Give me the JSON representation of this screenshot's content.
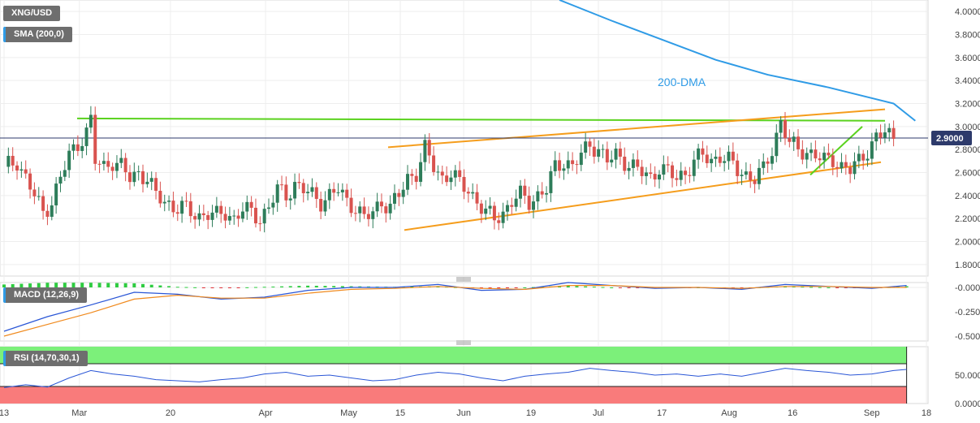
{
  "main_panel": {
    "symbol_label": "XNG/USD",
    "indicator_label": "SMA (200,0)",
    "annotation": "200-DMA",
    "price_tag": "2.9000",
    "y_ticks": [
      "4.0000",
      "3.8000",
      "3.6000",
      "3.4000",
      "3.2000",
      "3.0000",
      "2.8000",
      "2.6000",
      "2.4000",
      "2.2000",
      "2.0000",
      "1.8000"
    ]
  },
  "macd_panel": {
    "label": "MACD (12,26,9)",
    "y_ticks": [
      "-0.0000",
      "-0.2500",
      "-0.5000"
    ]
  },
  "rsi_panel": {
    "label": "RSI (14,70,30,1)",
    "y_ticks": [
      "50.0000",
      "0.0000"
    ]
  },
  "x_ticks": [
    "13",
    "Mar",
    "20",
    "Apr",
    "May",
    "15",
    "Jun",
    "19",
    "Jul",
    "17",
    "Aug",
    "16",
    "Sep",
    "18"
  ],
  "colors": {
    "up": "#2e7d5a",
    "down": "#d9534f",
    "sma": "#2f9be6",
    "green_line": "#5ad21e",
    "orange_line": "#f59d1c",
    "macd": "#2a56d6",
    "signal": "#f08a1e",
    "rsi": "#2a56d6",
    "overbought": "#7cf07a",
    "oversold": "#f97b7b"
  },
  "chart_data": [
    {
      "type": "candlestick",
      "title": "XNG/USD",
      "ylim": [
        1.7,
        4.1
      ],
      "close_points": [
        [
          0,
          2.65
        ],
        [
          3,
          2.7
        ],
        [
          5,
          2.55
        ],
        [
          7,
          2.4
        ],
        [
          9,
          2.25
        ],
        [
          11,
          2.35
        ],
        [
          13,
          2.55
        ],
        [
          15,
          2.75
        ],
        [
          17,
          2.85
        ],
        [
          19,
          2.95
        ],
        [
          20,
          3.05
        ],
        [
          21,
          2.7
        ],
        [
          23,
          2.65
        ],
        [
          25,
          2.7
        ],
        [
          27,
          2.65
        ],
        [
          29,
          2.55
        ],
        [
          31,
          2.6
        ],
        [
          33,
          2.55
        ],
        [
          35,
          2.4
        ],
        [
          37,
          2.35
        ],
        [
          39,
          2.3
        ],
        [
          41,
          2.3
        ],
        [
          43,
          2.25
        ],
        [
          45,
          2.22
        ],
        [
          47,
          2.25
        ],
        [
          49,
          2.22
        ],
        [
          51,
          2.25
        ],
        [
          53,
          2.2
        ],
        [
          55,
          2.28
        ],
        [
          57,
          2.25
        ],
        [
          59,
          2.2
        ],
        [
          61,
          2.3
        ],
        [
          63,
          2.45
        ],
        [
          65,
          2.4
        ],
        [
          67,
          2.5
        ],
        [
          69,
          2.45
        ],
        [
          71,
          2.4
        ],
        [
          73,
          2.35
        ],
        [
          75,
          2.4
        ],
        [
          77,
          2.45
        ],
        [
          79,
          2.35
        ],
        [
          81,
          2.3
        ],
        [
          83,
          2.2
        ],
        [
          85,
          2.25
        ],
        [
          87,
          2.35
        ],
        [
          89,
          2.3
        ],
        [
          91,
          2.4
        ],
        [
          93,
          2.55
        ],
        [
          95,
          2.6
        ],
        [
          97,
          2.8
        ],
        [
          99,
          2.65
        ],
        [
          101,
          2.55
        ],
        [
          103,
          2.6
        ],
        [
          105,
          2.5
        ],
        [
          107,
          2.45
        ],
        [
          109,
          2.35
        ],
        [
          111,
          2.25
        ],
        [
          113,
          2.2
        ],
        [
          115,
          2.25
        ],
        [
          117,
          2.35
        ],
        [
          119,
          2.4
        ],
        [
          121,
          2.35
        ],
        [
          123,
          2.4
        ],
        [
          125,
          2.45
        ],
        [
          127,
          2.65
        ],
        [
          129,
          2.7
        ],
        [
          131,
          2.65
        ],
        [
          133,
          2.75
        ],
        [
          135,
          2.85
        ],
        [
          137,
          2.8
        ],
        [
          139,
          2.7
        ],
        [
          141,
          2.75
        ],
        [
          143,
          2.7
        ],
        [
          145,
          2.65
        ],
        [
          147,
          2.6
        ],
        [
          149,
          2.55
        ],
        [
          151,
          2.65
        ],
        [
          153,
          2.6
        ],
        [
          155,
          2.55
        ],
        [
          157,
          2.6
        ],
        [
          159,
          2.7
        ],
        [
          161,
          2.75
        ],
        [
          163,
          2.7
        ],
        [
          165,
          2.75
        ],
        [
          167,
          2.7
        ],
        [
          169,
          2.62
        ],
        [
          171,
          2.58
        ],
        [
          173,
          2.55
        ],
        [
          175,
          2.62
        ],
        [
          177,
          2.8
        ],
        [
          179,
          3.05
        ],
        [
          181,
          2.85
        ],
        [
          183,
          2.8
        ],
        [
          185,
          2.78
        ],
        [
          187,
          2.75
        ],
        [
          189,
          2.7
        ],
        [
          191,
          2.72
        ],
        [
          193,
          2.65
        ],
        [
          195,
          2.62
        ],
        [
          197,
          2.7
        ],
        [
          199,
          2.8
        ],
        [
          201,
          2.9
        ],
        [
          203,
          2.95
        ],
        [
          205,
          2.9
        ]
      ],
      "series": [
        {
          "name": "SMA (200,0)",
          "x": [
            128,
            140,
            152,
            164,
            176,
            190,
            205,
            210
          ],
          "y": [
            4.1,
            3.92,
            3.75,
            3.58,
            3.45,
            3.34,
            3.2,
            3.05
          ]
        }
      ],
      "annotations": [
        "200-DMA"
      ]
    },
    {
      "type": "line",
      "title": "MACD (12,26,9)",
      "ylim": [
        -0.55,
        0.05
      ],
      "series": [
        {
          "name": "MACD",
          "x": [
            0,
            10,
            20,
            30,
            40,
            50,
            60,
            70,
            80,
            90,
            100,
            110,
            120,
            130,
            140,
            150,
            160,
            170,
            180,
            190,
            200,
            208
          ],
          "y": [
            -0.45,
            -0.3,
            -0.18,
            -0.05,
            -0.07,
            -0.12,
            -0.1,
            -0.03,
            0.0,
            0.0,
            0.03,
            -0.03,
            -0.02,
            0.05,
            0.02,
            -0.01,
            0.0,
            -0.02,
            0.03,
            0.01,
            -0.01,
            0.02
          ]
        },
        {
          "name": "Signal",
          "x": [
            0,
            10,
            20,
            30,
            40,
            50,
            60,
            70,
            80,
            90,
            100,
            110,
            120,
            130,
            140,
            150,
            160,
            170,
            180,
            190,
            200,
            208
          ],
          "y": [
            -0.5,
            -0.38,
            -0.26,
            -0.12,
            -0.08,
            -0.11,
            -0.11,
            -0.06,
            -0.02,
            -0.01,
            0.01,
            -0.01,
            -0.02,
            0.02,
            0.02,
            0.0,
            0.0,
            -0.01,
            0.01,
            0.01,
            0.0,
            0.0
          ]
        }
      ]
    },
    {
      "type": "line",
      "title": "RSI (14,70,30,1)",
      "ylim": [
        0,
        100
      ],
      "series": [
        {
          "name": "RSI",
          "x": [
            0,
            5,
            10,
            15,
            20,
            25,
            30,
            35,
            40,
            45,
            50,
            55,
            60,
            65,
            70,
            75,
            80,
            85,
            90,
            95,
            100,
            105,
            110,
            115,
            120,
            125,
            130,
            135,
            140,
            145,
            150,
            155,
            160,
            165,
            170,
            175,
            180,
            185,
            190,
            195,
            200,
            205,
            208
          ],
          "y": [
            28,
            33,
            29,
            45,
            58,
            52,
            48,
            42,
            40,
            38,
            42,
            45,
            52,
            55,
            48,
            50,
            45,
            40,
            42,
            50,
            55,
            52,
            45,
            40,
            48,
            52,
            55,
            62,
            58,
            55,
            50,
            52,
            48,
            52,
            48,
            55,
            62,
            58,
            55,
            50,
            52,
            58,
            60
          ]
        }
      ],
      "bands": {
        "overbought": 70,
        "oversold": 30
      }
    }
  ]
}
